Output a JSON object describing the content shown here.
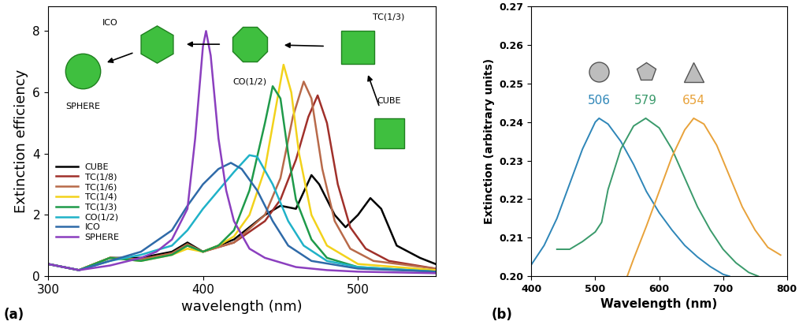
{
  "chart_data": [
    {
      "type": "line",
      "panel_label": "(a)",
      "x_label": "wavelength (nm)",
      "y_label": "Extinction efficiency",
      "xlim": [
        300,
        550
      ],
      "xticks": [
        300,
        400,
        500
      ],
      "ylim": [
        0,
        8.8
      ],
      "yticks": [
        0,
        2,
        4,
        6,
        8
      ],
      "legend": "lower left",
      "annotations": [
        "ICO",
        "SPHERE",
        "CO(1/2)",
        "TC(1/3)",
        "CUBE"
      ],
      "series": [
        {
          "name": "CUBE",
          "color": "#000000",
          "x": [
            300,
            320,
            340,
            360,
            380,
            390,
            400,
            420,
            440,
            450,
            460,
            470,
            475,
            485,
            492,
            500,
            508,
            515,
            525,
            540,
            550
          ],
          "values": [
            0.4,
            0.2,
            0.6,
            0.6,
            0.8,
            1.1,
            0.8,
            1.2,
            2.0,
            2.3,
            2.2,
            3.3,
            3.0,
            2.0,
            1.6,
            2.0,
            2.55,
            2.2,
            1.0,
            0.6,
            0.4
          ]
        },
        {
          "name": "TC(1/8)",
          "color": "#a0302a",
          "x": [
            300,
            320,
            340,
            360,
            380,
            390,
            400,
            420,
            440,
            450,
            460,
            468,
            474,
            480,
            487,
            495,
            505,
            520,
            550
          ],
          "values": [
            0.4,
            0.2,
            0.6,
            0.55,
            0.75,
            1.0,
            0.8,
            1.1,
            1.8,
            2.5,
            3.8,
            5.2,
            5.9,
            5.0,
            3.0,
            1.6,
            0.9,
            0.5,
            0.25
          ]
        },
        {
          "name": "TC(1/6)",
          "color": "#b86a4a",
          "x": [
            300,
            320,
            340,
            360,
            380,
            390,
            400,
            420,
            440,
            450,
            458,
            465,
            470,
            477,
            485,
            495,
            510,
            550
          ],
          "values": [
            0.4,
            0.2,
            0.6,
            0.55,
            0.75,
            1.05,
            0.8,
            1.1,
            2.0,
            3.2,
            5.2,
            6.35,
            5.8,
            3.5,
            1.8,
            0.9,
            0.5,
            0.25
          ]
        },
        {
          "name": "TC(1/4)",
          "color": "#f2d21b",
          "x": [
            300,
            320,
            340,
            360,
            380,
            390,
            400,
            410,
            420,
            430,
            440,
            447,
            452,
            457,
            462,
            470,
            480,
            500,
            550
          ],
          "values": [
            0.4,
            0.2,
            0.6,
            0.5,
            0.7,
            0.9,
            0.8,
            1.0,
            1.3,
            2.0,
            3.5,
            5.5,
            6.9,
            6.0,
            4.0,
            2.0,
            1.0,
            0.4,
            0.2
          ]
        },
        {
          "name": "TC(1/3)",
          "color": "#1f9a4a",
          "x": [
            300,
            320,
            340,
            360,
            380,
            390,
            400,
            410,
            420,
            430,
            440,
            445,
            450,
            455,
            460,
            470,
            480,
            500,
            550
          ],
          "values": [
            0.4,
            0.2,
            0.6,
            0.5,
            0.7,
            1.0,
            0.8,
            1.0,
            1.5,
            2.8,
            5.0,
            6.2,
            5.8,
            4.0,
            2.5,
            1.2,
            0.6,
            0.3,
            0.15
          ]
        },
        {
          "name": "CO(1/2)",
          "color": "#20b2c8",
          "x": [
            300,
            320,
            340,
            360,
            380,
            390,
            400,
            410,
            420,
            430,
            435,
            445,
            455,
            465,
            480,
            500,
            550
          ],
          "values": [
            0.4,
            0.2,
            0.5,
            0.7,
            1.0,
            1.5,
            2.2,
            2.8,
            3.4,
            3.95,
            3.9,
            3.0,
            1.8,
            1.0,
            0.5,
            0.3,
            0.15
          ]
        },
        {
          "name": "ICO",
          "color": "#2f6aa8",
          "x": [
            300,
            320,
            340,
            360,
            380,
            390,
            400,
            410,
            418,
            425,
            435,
            445,
            455,
            470,
            500,
            550
          ],
          "values": [
            0.4,
            0.2,
            0.5,
            0.8,
            1.5,
            2.3,
            3.0,
            3.5,
            3.7,
            3.5,
            2.8,
            1.8,
            1.0,
            0.5,
            0.25,
            0.15
          ]
        },
        {
          "name": "SPHERE",
          "color": "#8b3fbf",
          "x": [
            300,
            320,
            340,
            360,
            370,
            380,
            390,
            395,
            400,
            402,
            405,
            410,
            415,
            420,
            430,
            440,
            460,
            480,
            500,
            550
          ],
          "values": [
            0.4,
            0.2,
            0.35,
            0.6,
            0.8,
            1.2,
            2.2,
            4.5,
            7.5,
            8.0,
            7.2,
            4.5,
            2.8,
            1.8,
            0.9,
            0.6,
            0.3,
            0.2,
            0.15,
            0.1
          ]
        }
      ]
    },
    {
      "type": "line",
      "panel_label": "(b)",
      "x_label": "Wavelength (nm)",
      "y_label": "Extinction (arbitrary units)",
      "xlim": [
        400,
        800
      ],
      "xticks": [
        400,
        500,
        600,
        700,
        800
      ],
      "ylim": [
        0.2,
        0.27
      ],
      "yticks": [
        {
          "value": 0.2,
          "label": "0.20"
        },
        0.21,
        0.22,
        0.23,
        0.24,
        0.25,
        0.26,
        0.27
      ],
      "data_labels": true,
      "series": [
        {
          "name": "506",
          "color": "#2e86b8",
          "x": [
            400,
            420,
            440,
            460,
            480,
            500,
            506,
            520,
            540,
            560,
            580,
            600,
            620,
            640,
            660,
            680,
            700,
            710
          ],
          "values": [
            0.203,
            0.208,
            0.215,
            0.224,
            0.233,
            0.24,
            0.241,
            0.2395,
            0.235,
            0.229,
            0.222,
            0.2165,
            0.212,
            0.208,
            0.205,
            0.2025,
            0.2005,
            0.2
          ]
        },
        {
          "name": "579",
          "color": "#3a9a6b",
          "x": [
            440,
            460,
            480,
            500,
            510,
            520,
            540,
            560,
            579,
            600,
            620,
            640,
            660,
            680,
            700,
            720,
            740,
            755
          ],
          "values": [
            0.207,
            0.207,
            0.209,
            0.2115,
            0.214,
            0.2225,
            0.233,
            0.239,
            0.241,
            0.2385,
            0.233,
            0.2255,
            0.218,
            0.212,
            0.207,
            0.2035,
            0.201,
            0.2
          ]
        },
        {
          "name": "654",
          "color": "#e8a23a",
          "x": [
            550,
            560,
            580,
            600,
            620,
            640,
            654,
            670,
            690,
            710,
            730,
            750,
            770,
            790
          ],
          "values": [
            0.2,
            0.2045,
            0.213,
            0.222,
            0.231,
            0.238,
            0.241,
            0.2395,
            0.234,
            0.226,
            0.218,
            0.212,
            0.2075,
            0.2055
          ]
        }
      ]
    }
  ]
}
